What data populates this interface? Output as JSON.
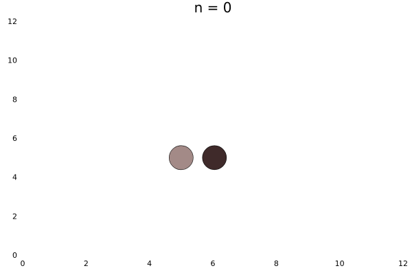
{
  "chart_data": {
    "type": "scatter",
    "title": "n = 0",
    "xlabel": "",
    "ylabel": "",
    "xlim": [
      0,
      12
    ],
    "ylim": [
      0,
      12
    ],
    "xticks": [
      0,
      2,
      4,
      6,
      8,
      10,
      12
    ],
    "yticks": [
      0,
      2,
      4,
      6,
      8,
      10,
      12
    ],
    "grid": false,
    "legend": "none",
    "points": [
      {
        "x": 5.0,
        "y": 5.0,
        "color": "#a38a87",
        "stroke": "#000000"
      },
      {
        "x": 6.05,
        "y": 5.0,
        "color": "#3f2a2a",
        "stroke": "#000000"
      }
    ]
  }
}
